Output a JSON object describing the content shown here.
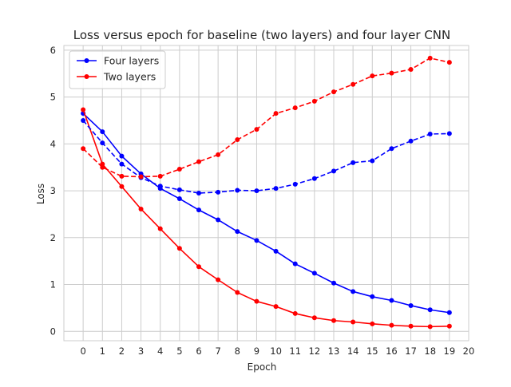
{
  "chart_data": {
    "type": "line",
    "title": "Loss versus epoch for baseline (two layers) and four layer CNN",
    "xlabel": "Epoch",
    "ylabel": "Loss",
    "xlim": [
      -1,
      20
    ],
    "ylim": [
      -0.2,
      6.1
    ],
    "xticks": [
      0,
      1,
      2,
      3,
      4,
      5,
      6,
      7,
      8,
      9,
      10,
      11,
      12,
      13,
      14,
      15,
      16,
      17,
      18,
      19,
      20
    ],
    "yticks": [
      0,
      1,
      2,
      3,
      4,
      5,
      6
    ],
    "grid": true,
    "legend_position": "top-left",
    "x": [
      0,
      1,
      2,
      3,
      4,
      5,
      6,
      7,
      8,
      9,
      10,
      11,
      12,
      13,
      14,
      15,
      16,
      17,
      18,
      19
    ],
    "series": [
      {
        "name": "Four layers",
        "color": "#0000ff",
        "linestyle": "solid",
        "marker": "circle",
        "values": [
          4.65,
          4.26,
          3.74,
          3.36,
          3.05,
          2.83,
          2.59,
          2.38,
          2.13,
          1.94,
          1.71,
          1.44,
          1.24,
          1.03,
          0.85,
          0.74,
          0.66,
          0.55,
          0.46,
          0.4
        ]
      },
      {
        "name": "Two layers",
        "color": "#ff0000",
        "linestyle": "solid",
        "marker": "circle",
        "values": [
          4.73,
          3.57,
          3.09,
          2.61,
          2.19,
          1.77,
          1.38,
          1.1,
          0.83,
          0.64,
          0.53,
          0.38,
          0.29,
          0.23,
          0.2,
          0.16,
          0.13,
          0.11,
          0.1,
          0.11
        ]
      },
      {
        "color": "#0000ff",
        "linestyle": "dashed",
        "marker": "circle",
        "values": [
          4.5,
          4.02,
          3.57,
          3.28,
          3.1,
          3.02,
          2.95,
          2.97,
          3.01,
          3.0,
          3.05,
          3.14,
          3.26,
          3.42,
          3.6,
          3.64,
          3.9,
          4.06,
          4.21,
          4.22
        ]
      },
      {
        "color": "#ff0000",
        "linestyle": "dashed",
        "marker": "circle",
        "values": [
          3.9,
          3.5,
          3.31,
          3.3,
          3.31,
          3.46,
          3.62,
          3.77,
          4.09,
          4.31,
          4.65,
          4.77,
          4.91,
          5.11,
          5.27,
          5.45,
          5.51,
          5.59,
          5.83,
          5.74
        ]
      }
    ]
  }
}
